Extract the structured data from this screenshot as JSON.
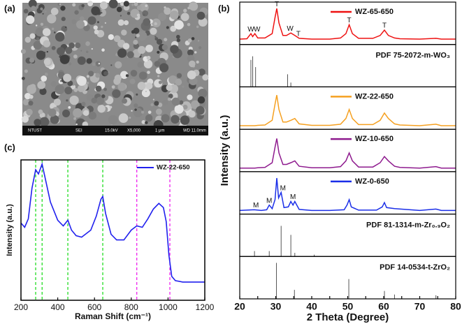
{
  "image": {
    "label": "(a)",
    "info_bar": [
      "NTUST",
      "SEI",
      "15.0kV",
      "X5,000",
      "1 μm",
      "WD 11.0mm"
    ]
  },
  "chart_data": [
    {
      "type": "line",
      "label": "(c)",
      "x_label": "Raman Shift (cm⁻¹)",
      "y_label": "Intensity (a.u.)",
      "xlim": [
        200,
        1200
      ],
      "xticks": [
        200,
        400,
        600,
        800,
        1000,
        1200
      ],
      "ylim": [
        0,
        1
      ],
      "legend": "top-right",
      "reference_lines": [
        {
          "x": 280,
          "color": "#22dd22"
        },
        {
          "x": 315,
          "color": "#22dd22"
        },
        {
          "x": 455,
          "color": "#22dd22"
        },
        {
          "x": 645,
          "color": "#22dd22"
        },
        {
          "x": 830,
          "color": "#ee22ee"
        },
        {
          "x": 1010,
          "color": "#ee22ee"
        }
      ],
      "series": [
        {
          "name": "WZ-22-650",
          "color": "#2020ee",
          "x": [
            200,
            220,
            240,
            260,
            280,
            295,
            315,
            330,
            360,
            400,
            430,
            455,
            475,
            500,
            530,
            580,
            610,
            635,
            645,
            660,
            690,
            720,
            760,
            800,
            830,
            860,
            890,
            920,
            950,
            975,
            990,
            1005,
            1020,
            1040,
            1080,
            1140,
            1200
          ],
          "values": [
            0.55,
            0.52,
            0.58,
            0.8,
            0.93,
            0.9,
            0.97,
            0.88,
            0.7,
            0.57,
            0.53,
            0.57,
            0.5,
            0.46,
            0.45,
            0.5,
            0.6,
            0.72,
            0.74,
            0.62,
            0.47,
            0.43,
            0.43,
            0.5,
            0.53,
            0.52,
            0.58,
            0.65,
            0.69,
            0.66,
            0.56,
            0.32,
            0.17,
            0.14,
            0.13,
            0.13,
            0.13
          ]
        }
      ]
    },
    {
      "type": "stacked",
      "label": "(b)",
      "x_label": "2 Theta (Degree)",
      "y_label": "Intensity (a.u.)",
      "xlim": [
        20,
        80
      ],
      "xticks": [
        20,
        25,
        30,
        35,
        40,
        45,
        50,
        55,
        60,
        65,
        70,
        75,
        80
      ],
      "panels": [
        {
          "kind": "line",
          "name": "WZ-65-650",
          "color": "#ee1111",
          "ylim": [
            0,
            1.1
          ],
          "x": [
            20,
            22,
            23.1,
            23.6,
            24.2,
            25,
            27,
            29,
            29.8,
            30.3,
            30.9,
            32,
            33,
            34.2,
            35.3,
            36.5,
            40,
            45,
            48,
            49.5,
            50.4,
            51.3,
            53,
            57,
            59,
            60.2,
            61.3,
            63,
            64.5,
            70,
            74.5,
            76,
            80
          ],
          "values": [
            0.15,
            0.16,
            0.3,
            0.22,
            0.3,
            0.18,
            0.18,
            0.3,
            0.75,
            1.0,
            0.6,
            0.25,
            0.25,
            0.32,
            0.25,
            0.17,
            0.15,
            0.15,
            0.18,
            0.3,
            0.55,
            0.3,
            0.17,
            0.17,
            0.25,
            0.4,
            0.25,
            0.18,
            0.16,
            0.15,
            0.17,
            0.15,
            0.15
          ],
          "peak_labels": [
            {
              "x": 23.1,
              "text": "W"
            },
            {
              "x": 24.8,
              "text": "W"
            },
            {
              "x": 30.3,
              "text": "T"
            },
            {
              "x": 34,
              "text": "W"
            },
            {
              "x": 36.3,
              "text": "T"
            },
            {
              "x": 50.4,
              "text": "T"
            },
            {
              "x": 60.2,
              "text": "T"
            }
          ]
        },
        {
          "kind": "stick",
          "name": "PDF 75-2072-m-WO₃",
          "color": "#555555",
          "ylim": [
            0,
            1.1
          ],
          "x": [
            23.1,
            23.6,
            24.4,
            33.3,
            34.2
          ],
          "values": [
            0.75,
            0.85,
            0.55,
            0.35,
            0.12
          ]
        },
        {
          "kind": "line",
          "name": "WZ-22-650",
          "color": "#f5a020",
          "ylim": [
            0,
            1.1
          ],
          "x": [
            20,
            22,
            23.1,
            23.6,
            24.2,
            25,
            27,
            29,
            29.8,
            30.3,
            30.9,
            32,
            33,
            34.2,
            35.3,
            36.5,
            40,
            45,
            48,
            49.5,
            50.4,
            51.3,
            53,
            57,
            59,
            60.2,
            61.3,
            63,
            64.5,
            70,
            74.5,
            76,
            80
          ],
          "values": [
            0.1,
            0.1,
            0.1,
            0.1,
            0.1,
            0.11,
            0.12,
            0.25,
            0.7,
            0.95,
            0.55,
            0.2,
            0.2,
            0.25,
            0.3,
            0.15,
            0.11,
            0.11,
            0.14,
            0.3,
            0.55,
            0.3,
            0.13,
            0.13,
            0.25,
            0.45,
            0.3,
            0.15,
            0.12,
            0.1,
            0.14,
            0.1,
            0.1
          ]
        },
        {
          "kind": "line",
          "name": "WZ-10-650",
          "color": "#8e1a8e",
          "ylim": [
            0,
            1.1
          ],
          "x": [
            20,
            22,
            23.1,
            23.6,
            24.2,
            25,
            27,
            29,
            29.8,
            30.3,
            30.9,
            32,
            33,
            34.2,
            35.3,
            36.5,
            40,
            45,
            48,
            49.5,
            50.4,
            51.3,
            53,
            57,
            59,
            60.2,
            61.3,
            63,
            64.5,
            70,
            74.5,
            76,
            80
          ],
          "values": [
            0.1,
            0.1,
            0.1,
            0.1,
            0.1,
            0.11,
            0.12,
            0.25,
            0.68,
            0.92,
            0.52,
            0.2,
            0.2,
            0.25,
            0.3,
            0.15,
            0.11,
            0.11,
            0.14,
            0.3,
            0.52,
            0.3,
            0.13,
            0.13,
            0.25,
            0.42,
            0.3,
            0.15,
            0.12,
            0.1,
            0.14,
            0.1,
            0.1
          ]
        },
        {
          "kind": "line",
          "name": "WZ-0-650",
          "color": "#1a2ee8",
          "ylim": [
            0,
            1.1
          ],
          "x": [
            20,
            24,
            26,
            27.5,
            28.2,
            29,
            29.8,
            30.3,
            30.8,
            31.5,
            32.3,
            33.5,
            34.2,
            34.8,
            35.3,
            36.5,
            40,
            45,
            49,
            49.8,
            50.4,
            51,
            53,
            58,
            59.6,
            60.2,
            60.8,
            63,
            70,
            74.5,
            76,
            80
          ],
          "values": [
            0.1,
            0.12,
            0.1,
            0.12,
            0.25,
            0.15,
            0.4,
            1.0,
            0.45,
            0.6,
            0.18,
            0.2,
            0.35,
            0.25,
            0.35,
            0.13,
            0.1,
            0.1,
            0.12,
            0.25,
            0.4,
            0.2,
            0.11,
            0.11,
            0.2,
            0.32,
            0.18,
            0.15,
            0.1,
            0.14,
            0.1,
            0.1
          ],
          "peak_labels": [
            {
              "x": 24.5,
              "text": "M"
            },
            {
              "x": 28.2,
              "text": "M"
            },
            {
              "x": 32,
              "text": "M"
            },
            {
              "x": 34.8,
              "text": "M"
            }
          ]
        },
        {
          "kind": "stick",
          "name": "PDF 81-1314-m-Zr₀.₉O₂",
          "color": "#555555",
          "ylim": [
            0,
            1.1
          ],
          "x": [
            24.1,
            28.2,
            31.5,
            34.2,
            35.3,
            40.7
          ],
          "values": [
            0.15,
            0.15,
            0.85,
            0.6,
            0.1,
            0.05
          ]
        },
        {
          "kind": "stick",
          "name": "PDF 14-0534-t-ZrO₂",
          "color": "#555555",
          "ylim": [
            0,
            1.1
          ],
          "x": [
            30.2,
            35.2,
            50.3,
            60.2,
            63,
            74.5
          ],
          "values": [
            1.0,
            0.25,
            0.55,
            0.22,
            0.12,
            0.1
          ]
        }
      ]
    }
  ]
}
